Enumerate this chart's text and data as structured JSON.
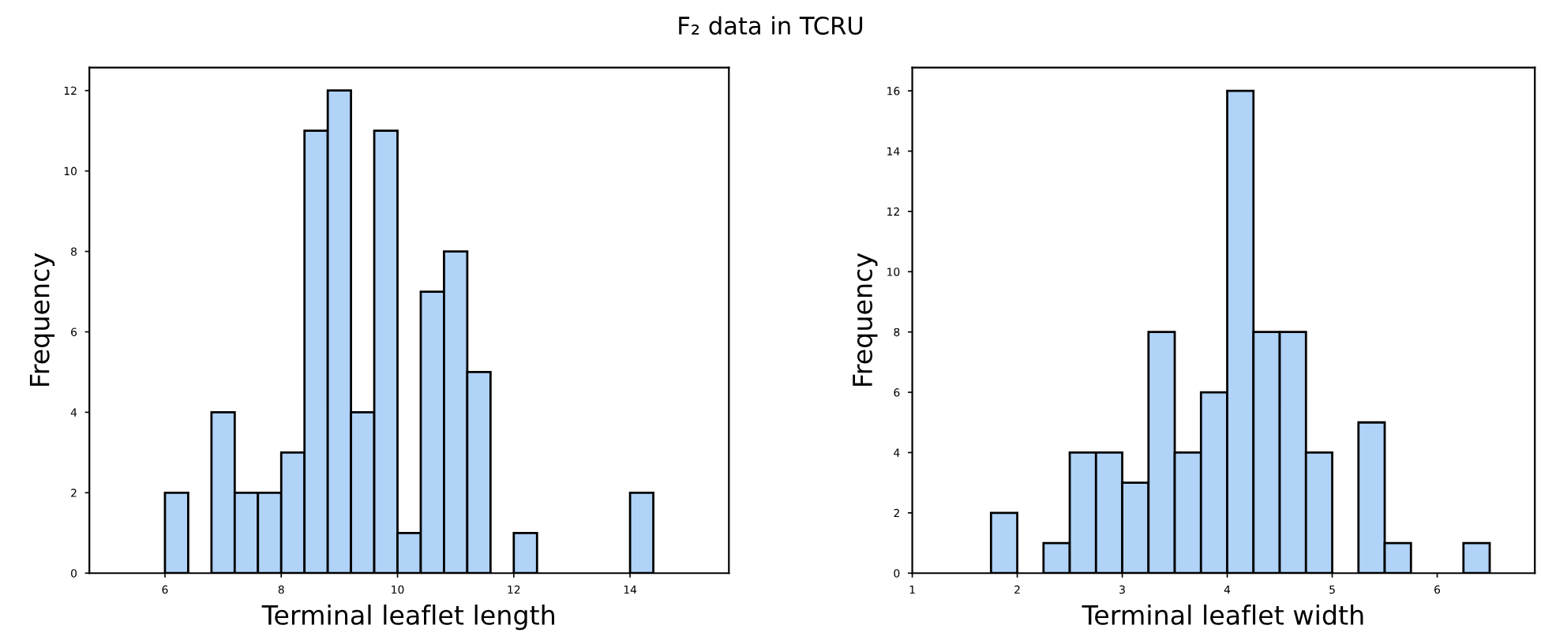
{
  "chart_data": [
    {
      "type": "histogram",
      "title": "F₂ data in TCRU",
      "xlabel": "Terminal leaflet length",
      "ylabel": "Frequency",
      "color": "#b0d3f7",
      "bins": [
        6.0,
        6.4,
        6.8,
        7.2,
        7.6,
        8.0,
        8.4,
        8.8,
        9.2,
        9.6,
        10.0,
        10.4,
        10.8,
        11.2,
        11.6,
        12.0,
        12.4,
        12.8,
        13.2,
        13.6,
        14.0,
        14.4
      ],
      "values": [
        2,
        0,
        4,
        2,
        2,
        3,
        11,
        12,
        4,
        11,
        1,
        7,
        8,
        5,
        0,
        1,
        0,
        0,
        0,
        0,
        2
      ],
      "xlim": [
        4.7,
        15.7
      ],
      "xticks": [
        6,
        8,
        10,
        12,
        14
      ],
      "ylim": [
        0,
        12.57
      ],
      "yticks": [
        0,
        2,
        4,
        6,
        8,
        10,
        12
      ],
      "grid": false,
      "legend": false
    },
    {
      "type": "histogram",
      "xlabel": "Terminal leaflet width",
      "ylabel": "Frequency",
      "color": "#b0d3f7",
      "bins": [
        1.75,
        2.0,
        2.25,
        2.5,
        2.75,
        3.0,
        3.25,
        3.5,
        3.75,
        4.0,
        4.25,
        4.5,
        4.75,
        5.0,
        5.25,
        5.5,
        5.75,
        6.0,
        6.25,
        6.5
      ],
      "values": [
        2,
        0,
        1,
        4,
        4,
        3,
        8,
        4,
        6,
        16,
        8,
        8,
        4,
        0,
        5,
        1,
        0,
        0,
        1
      ],
      "xlim": [
        1.0,
        6.93
      ],
      "xticks": [
        1,
        2,
        3,
        4,
        5,
        6
      ],
      "ylim": [
        0,
        16.77
      ],
      "yticks": [
        0,
        2,
        4,
        6,
        8,
        10,
        12,
        14,
        16
      ],
      "grid": false,
      "legend": false
    }
  ]
}
